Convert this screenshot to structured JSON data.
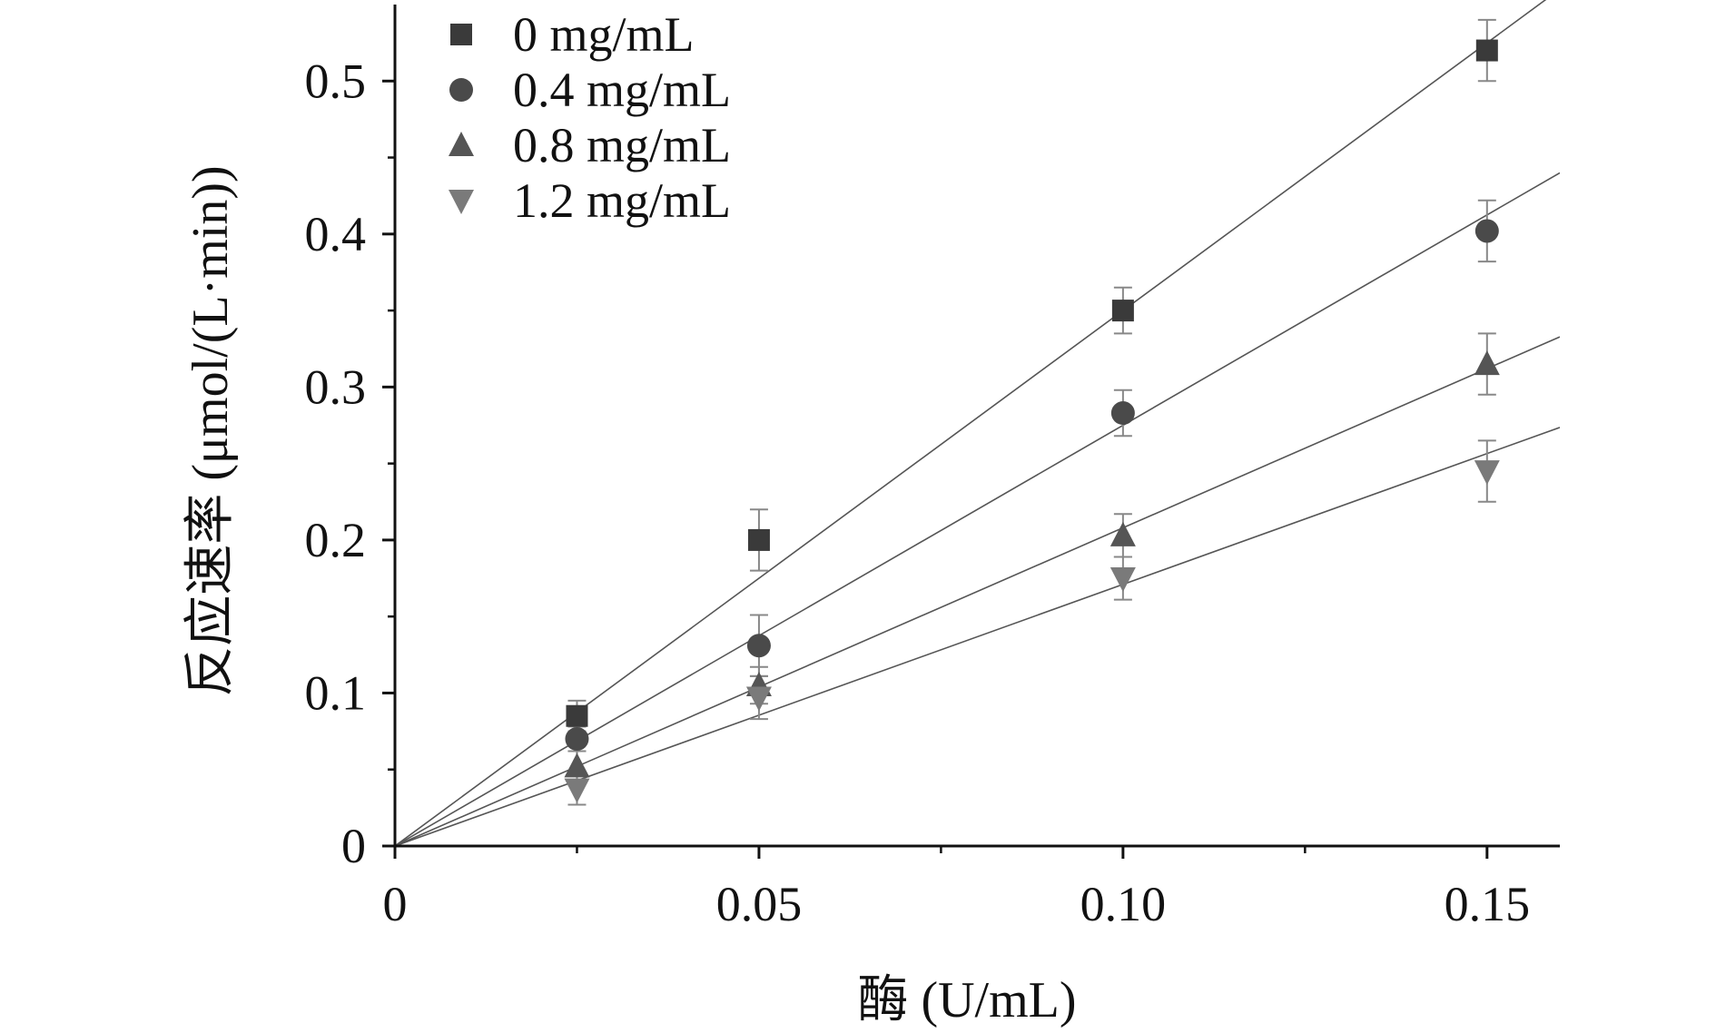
{
  "chart_data": {
    "type": "scatter",
    "xlabel": "酶 (U/mL)",
    "ylabel": "反应速率 (μmol/(L·min))",
    "xlim": [
      0,
      0.16
    ],
    "ylim": [
      0,
      0.55
    ],
    "x_ticks": [
      0,
      0.05,
      0.1,
      0.15
    ],
    "x_tick_labels": [
      "0",
      "0.05",
      "0.10",
      "0.15"
    ],
    "y_ticks": [
      0,
      0.1,
      0.2,
      0.3,
      0.4,
      0.5
    ],
    "y_tick_labels": [
      "0",
      "0.1",
      "0.2",
      "0.3",
      "0.4",
      "0.5"
    ],
    "grid": false,
    "legend_position": "top-left",
    "x": [
      0.025,
      0.05,
      0.1,
      0.15
    ],
    "series": [
      {
        "name": "0 mg/mL",
        "marker": "square",
        "color": "#3a3a3a",
        "values": [
          0.085,
          0.2,
          0.35,
          0.52
        ],
        "errors": [
          0.01,
          0.02,
          0.015,
          0.02
        ],
        "fit_slope": 3.5
      },
      {
        "name": "0.4 mg/mL",
        "marker": "circle",
        "color": "#4a4a4a",
        "values": [
          0.07,
          0.131,
          0.283,
          0.402
        ],
        "errors": [
          0.008,
          0.02,
          0.015,
          0.02
        ],
        "fit_slope": 2.75
      },
      {
        "name": "0.8 mg/mL",
        "marker": "triangle-up",
        "color": "#555555",
        "values": [
          0.052,
          0.105,
          0.203,
          0.315
        ],
        "errors": [
          0.01,
          0.012,
          0.014,
          0.02
        ],
        "fit_slope": 2.08
      },
      {
        "name": "1.2 mg/mL",
        "marker": "triangle-down",
        "color": "#7a7a7a",
        "values": [
          0.037,
          0.097,
          0.175,
          0.245
        ],
        "errors": [
          0.01,
          0.014,
          0.014,
          0.02
        ],
        "fit_slope": 1.71
      }
    ]
  }
}
